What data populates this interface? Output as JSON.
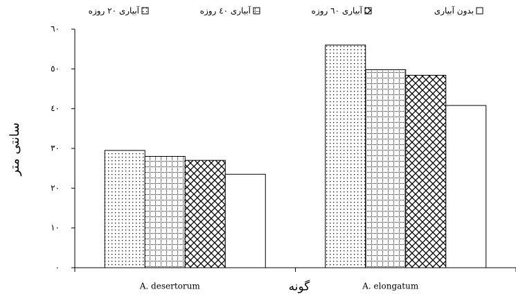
{
  "chart_data": {
    "type": "bar",
    "ylabel": "سانتی متر",
    "xlabel": "گونه",
    "categories": [
      "A. desertorum",
      "A. elongatum"
    ],
    "series": [
      {
        "name": "آبیاری ٢٠ روزه",
        "color": "#ffffff",
        "pattern": "dots",
        "values": [
          29.5,
          56
        ]
      },
      {
        "name": "آبیاری ٤٠ روزه",
        "color": "#ffffff",
        "pattern": "grid",
        "values": [
          28,
          49.8
        ]
      },
      {
        "name": "آبیاری ٦٠ روزه",
        "color": "#ffffff",
        "pattern": "waves",
        "values": [
          27,
          48.4
        ]
      },
      {
        "name": "بدون آبیاری",
        "color": "#ffffff",
        "pattern": "none",
        "values": [
          23.5,
          40.8
        ]
      }
    ],
    "ylim": [
      0,
      60
    ],
    "yticks": [
      {
        "value": 0,
        "label": "٠"
      },
      {
        "value": 10,
        "label": "١٠"
      },
      {
        "value": 20,
        "label": "٢٠"
      },
      {
        "value": 30,
        "label": "٣٠"
      },
      {
        "value": 40,
        "label": "٤٠"
      },
      {
        "value": 50,
        "label": "٥٠"
      },
      {
        "value": 60,
        "label": "٦٠"
      }
    ],
    "grid": false
  }
}
